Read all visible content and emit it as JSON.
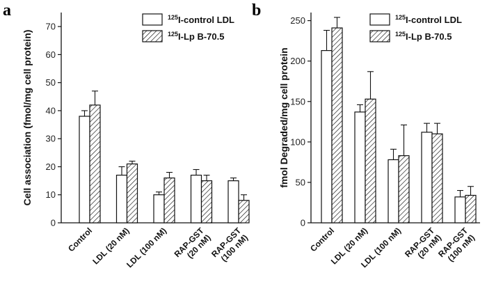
{
  "chart_data": [
    {
      "panel": "a",
      "type": "bar",
      "ylabel": "Cell association (fmol/mg cell protein)",
      "ylim": [
        0,
        75
      ],
      "yticks": [
        0,
        10,
        20,
        30,
        40,
        50,
        60,
        70
      ],
      "categories": [
        {
          "line1": "Control",
          "line2": ""
        },
        {
          "line1": "LDL (20 nM)",
          "line2": ""
        },
        {
          "line1": "LDL (100 nM)",
          "line2": ""
        },
        {
          "line1": "RAP-GST",
          "line2": "(20 nM)"
        },
        {
          "line1": "RAP-GST",
          "line2": "(100 nM)"
        }
      ],
      "series": [
        {
          "sup": "125",
          "name": "I-control LDL",
          "pattern": "open",
          "values": [
            38,
            17,
            10,
            17,
            15
          ],
          "errors": [
            2,
            3,
            1,
            2,
            1
          ]
        },
        {
          "sup": "125",
          "name": "I-Lp B-70.5",
          "pattern": "hatched",
          "values": [
            42,
            21,
            16,
            15,
            8
          ],
          "errors": [
            5,
            1,
            2,
            2,
            2
          ]
        }
      ],
      "legend_position": "top-right"
    },
    {
      "panel": "b",
      "type": "bar",
      "ylabel": "fmol Degraded/mg cell protein",
      "ylim": [
        0,
        260
      ],
      "yticks": [
        0,
        50,
        100,
        150,
        200,
        250
      ],
      "categories": [
        {
          "line1": "Control",
          "line2": ""
        },
        {
          "line1": "LDL (20 nM)",
          "line2": ""
        },
        {
          "line1": "LDL (100 nM)",
          "line2": ""
        },
        {
          "line1": "RAP-GST",
          "line2": "(20 nM)"
        },
        {
          "line1": "RAP-GST",
          "line2": "(100 nM)"
        }
      ],
      "series": [
        {
          "sup": "125",
          "name": "I-control LDL",
          "pattern": "open",
          "values": [
            213,
            137,
            78,
            112,
            32
          ],
          "errors": [
            25,
            9,
            13,
            11,
            8
          ]
        },
        {
          "sup": "125",
          "name": "I-Lp B-70.5",
          "pattern": "hatched",
          "values": [
            241,
            153,
            83,
            110,
            34
          ],
          "errors": [
            13,
            34,
            38,
            13,
            11
          ]
        }
      ],
      "legend_position": "top-right"
    }
  ],
  "colors": {
    "ink": "#111111",
    "fill_open": "#ffffff"
  }
}
